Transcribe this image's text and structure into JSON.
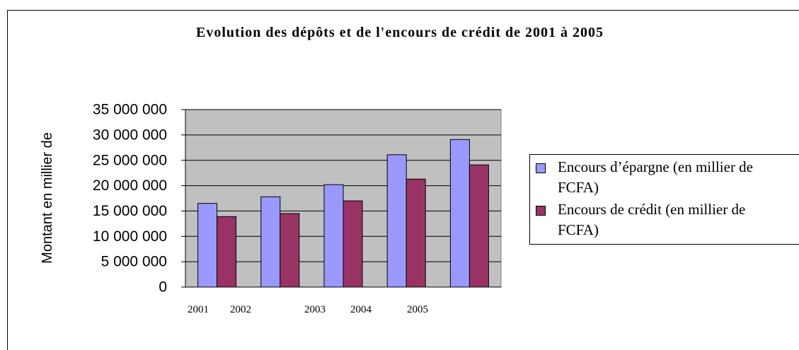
{
  "chart_data": {
    "type": "bar",
    "title": "Evolution des dépôts et de l'encours de crédit de 2001 à 2005",
    "y_label": "Montant en millier de",
    "categories": [
      "2001",
      "2002",
      "2003",
      "2004",
      "2005"
    ],
    "series": [
      {
        "name": "Encours d’épargne (en millier de FCFA)",
        "color": "#9999ff",
        "values": [
          16500000,
          17800000,
          20200000,
          26100000,
          29100000
        ]
      },
      {
        "name": "Encours de crédit (en millier de FCFA)",
        "color": "#993366",
        "values": [
          13900000,
          14500000,
          17000000,
          21300000,
          24100000
        ]
      }
    ],
    "ylim": [
      0,
      35000000
    ],
    "yticks": [
      {
        "value": 0,
        "label": "0"
      },
      {
        "value": 5000000,
        "label": "5 000 000"
      },
      {
        "value": 10000000,
        "label": "10 000 000"
      },
      {
        "value": 15000000,
        "label": "15 000 000"
      },
      {
        "value": 20000000,
        "label": "20 000 000"
      },
      {
        "value": 25000000,
        "label": "25 000 000"
      },
      {
        "value": 30000000,
        "label": "30 000 000"
      },
      {
        "value": 35000000,
        "label": "35 000 000"
      }
    ],
    "grid": true,
    "plot_background": "#c0c0c0",
    "legend": "right"
  }
}
